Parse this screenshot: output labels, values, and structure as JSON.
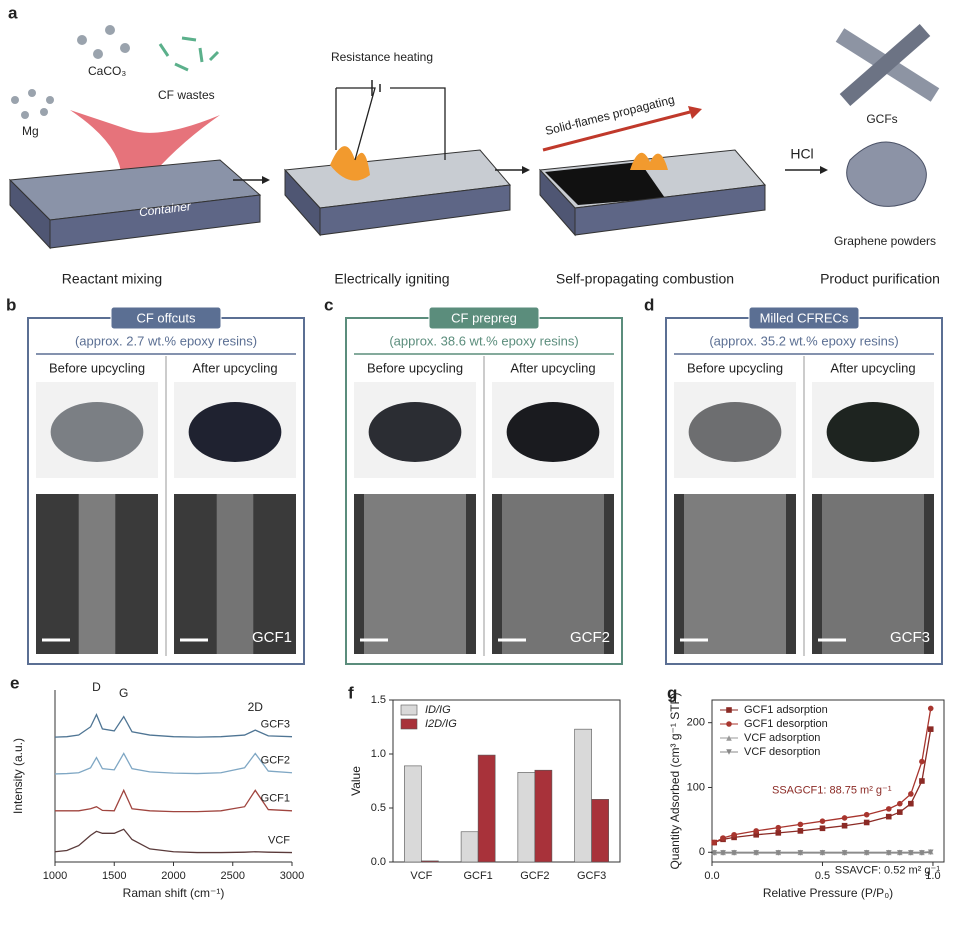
{
  "panel_a": {
    "letter": "a",
    "labels": {
      "caco3": "CaCO₃",
      "mg": "Mg",
      "cf_wastes": "CF wastes",
      "container": "Container",
      "heating": "Resistance heating",
      "flames": "Solid-flames propagating",
      "hcl": "HCl",
      "gcfs": "GCFs",
      "graphene": "Graphene powders"
    },
    "steps": [
      "Reactant mixing",
      "Electrically igniting",
      "Self-propagating combustion",
      "Product purification"
    ]
  },
  "panels": [
    {
      "letter": "b",
      "source": "CF offcuts",
      "resin": "(approx. 2.7 wt.% epoxy resins)",
      "before": "Before upcycling",
      "after": "After upcycling",
      "sample": "GCF1",
      "color": "#5b6f93"
    },
    {
      "letter": "c",
      "source": "CF prepreg",
      "resin": "(approx. 38.6 wt.% epoxy resins)",
      "before": "Before upcycling",
      "after": "After upcycling",
      "sample": "GCF2",
      "color": "#5b8d7c"
    },
    {
      "letter": "d",
      "source": "Milled CFRECs",
      "resin": "(approx. 35.2 wt.% epoxy resins)",
      "before": "Before upcycling",
      "after": "After upcycling",
      "sample": "GCF3",
      "color": "#5b6f93"
    }
  ],
  "chart_data": [
    {
      "type": "line",
      "panel_label": "e",
      "xlabel": "Raman shift (cm⁻¹)",
      "ylabel": "Intensity (a.u.)",
      "frame": "axes",
      "peak_labels": [
        "D",
        "G",
        "2D"
      ],
      "x": [
        1000,
        1100,
        1200,
        1300,
        1350,
        1400,
        1500,
        1580,
        1650,
        1800,
        2000,
        2200,
        2400,
        2600,
        2690,
        2800,
        3000
      ],
      "xlim": [
        1000,
        3000
      ],
      "xticks": [
        1000,
        1500,
        2000,
        2500,
        3000
      ],
      "ylim": [
        -0.2,
        4
      ],
      "series": [
        {
          "name": "GCF3",
          "color": "#4f7594",
          "values": [
            2.85,
            2.86,
            2.9,
            3.1,
            3.4,
            3.05,
            3.0,
            3.35,
            2.98,
            2.9,
            2.86,
            2.85,
            2.86,
            2.9,
            3.02,
            2.88,
            2.86
          ]
        },
        {
          "name": "GCF2",
          "color": "#7fa7c4",
          "values": [
            1.95,
            1.96,
            1.98,
            2.1,
            2.35,
            2.08,
            2.05,
            2.45,
            2.08,
            2.0,
            1.97,
            1.96,
            1.98,
            2.1,
            2.45,
            2.02,
            1.98
          ]
        },
        {
          "name": "GCF1",
          "color": "#a0453f",
          "values": [
            1.05,
            1.05,
            1.05,
            1.1,
            1.15,
            1.06,
            1.05,
            1.55,
            1.1,
            1.05,
            1.03,
            1.03,
            1.05,
            1.15,
            1.55,
            1.08,
            1.05
          ]
        },
        {
          "name": "VCF",
          "color": "#5a3a3a",
          "values": [
            0.05,
            0.08,
            0.2,
            0.45,
            0.55,
            0.5,
            0.5,
            0.6,
            0.35,
            0.12,
            0.05,
            0.03,
            0.03,
            0.04,
            0.05,
            0.04,
            0.03
          ]
        }
      ]
    },
    {
      "type": "bar",
      "panel_label": "f",
      "ylabel": "Value",
      "frame": "box",
      "legend": "upper left",
      "categories": [
        "VCF",
        "GCF1",
        "GCF2",
        "GCF3"
      ],
      "ylim": [
        0,
        1.5
      ],
      "yticks": [
        {
          "value": 0,
          "label": "0.0"
        },
        {
          "value": 0.5,
          "label": "0.5"
        },
        {
          "value": 1,
          "label": "1.0"
        },
        {
          "value": 1.5,
          "label": "1.5"
        }
      ],
      "series": [
        {
          "name": "ID/IG",
          "color": "#d9d9d9",
          "values": [
            0.89,
            0.28,
            0.83,
            1.23
          ]
        },
        {
          "name": "I2D/IG",
          "color": "#a8323a",
          "values": [
            0.01,
            0.99,
            0.85,
            0.58
          ]
        }
      ]
    },
    {
      "type": "scatter",
      "panel_label": "g",
      "xlabel": "Relative Pressure (P/P₀)",
      "ylabel": "Quantity Adsorbed (cm³ g⁻¹ STP)",
      "frame": "box",
      "legend": "upper left",
      "annotations": [
        "SSAGCF1: 88.75 m² g⁻¹",
        "SSAVCF: 0.52 m² g⁻¹"
      ],
      "x": [
        0.01,
        0.05,
        0.1,
        0.2,
        0.3,
        0.4,
        0.5,
        0.6,
        0.7,
        0.8,
        0.85,
        0.9,
        0.95,
        0.99
      ],
      "xlim": [
        0,
        1.05
      ],
      "xticks": [
        {
          "value": 0,
          "label": "0.0"
        },
        {
          "value": 0.5,
          "label": "0.5"
        },
        {
          "value": 1,
          "label": "1.0"
        }
      ],
      "ylim": [
        -15,
        235
      ],
      "yticks": [
        0,
        100,
        200
      ],
      "series": [
        {
          "name": "GCF1 adsorption",
          "color": "#8b2a25",
          "marker": "square",
          "values": [
            15,
            20,
            23,
            27,
            30,
            33,
            37,
            41,
            46,
            55,
            62,
            75,
            110,
            190
          ]
        },
        {
          "name": "GCF1 desorption",
          "color": "#a8352e",
          "marker": "circle",
          "values": [
            15,
            22,
            27,
            33,
            38,
            43,
            48,
            53,
            58,
            67,
            75,
            90,
            140,
            222
          ]
        },
        {
          "name": "VCF adsorption",
          "color": "#999999",
          "marker": "triangle",
          "values": [
            0,
            0,
            0,
            0,
            0,
            0,
            0,
            0,
            0,
            0,
            0,
            0,
            0,
            1
          ]
        },
        {
          "name": "VCF desorption",
          "color": "#888888",
          "marker": "triangle-down",
          "values": [
            -1,
            -1,
            -1,
            -1,
            -1,
            -1,
            -1,
            -1,
            -1,
            -1,
            -1,
            -1,
            -1,
            0
          ]
        }
      ]
    }
  ]
}
